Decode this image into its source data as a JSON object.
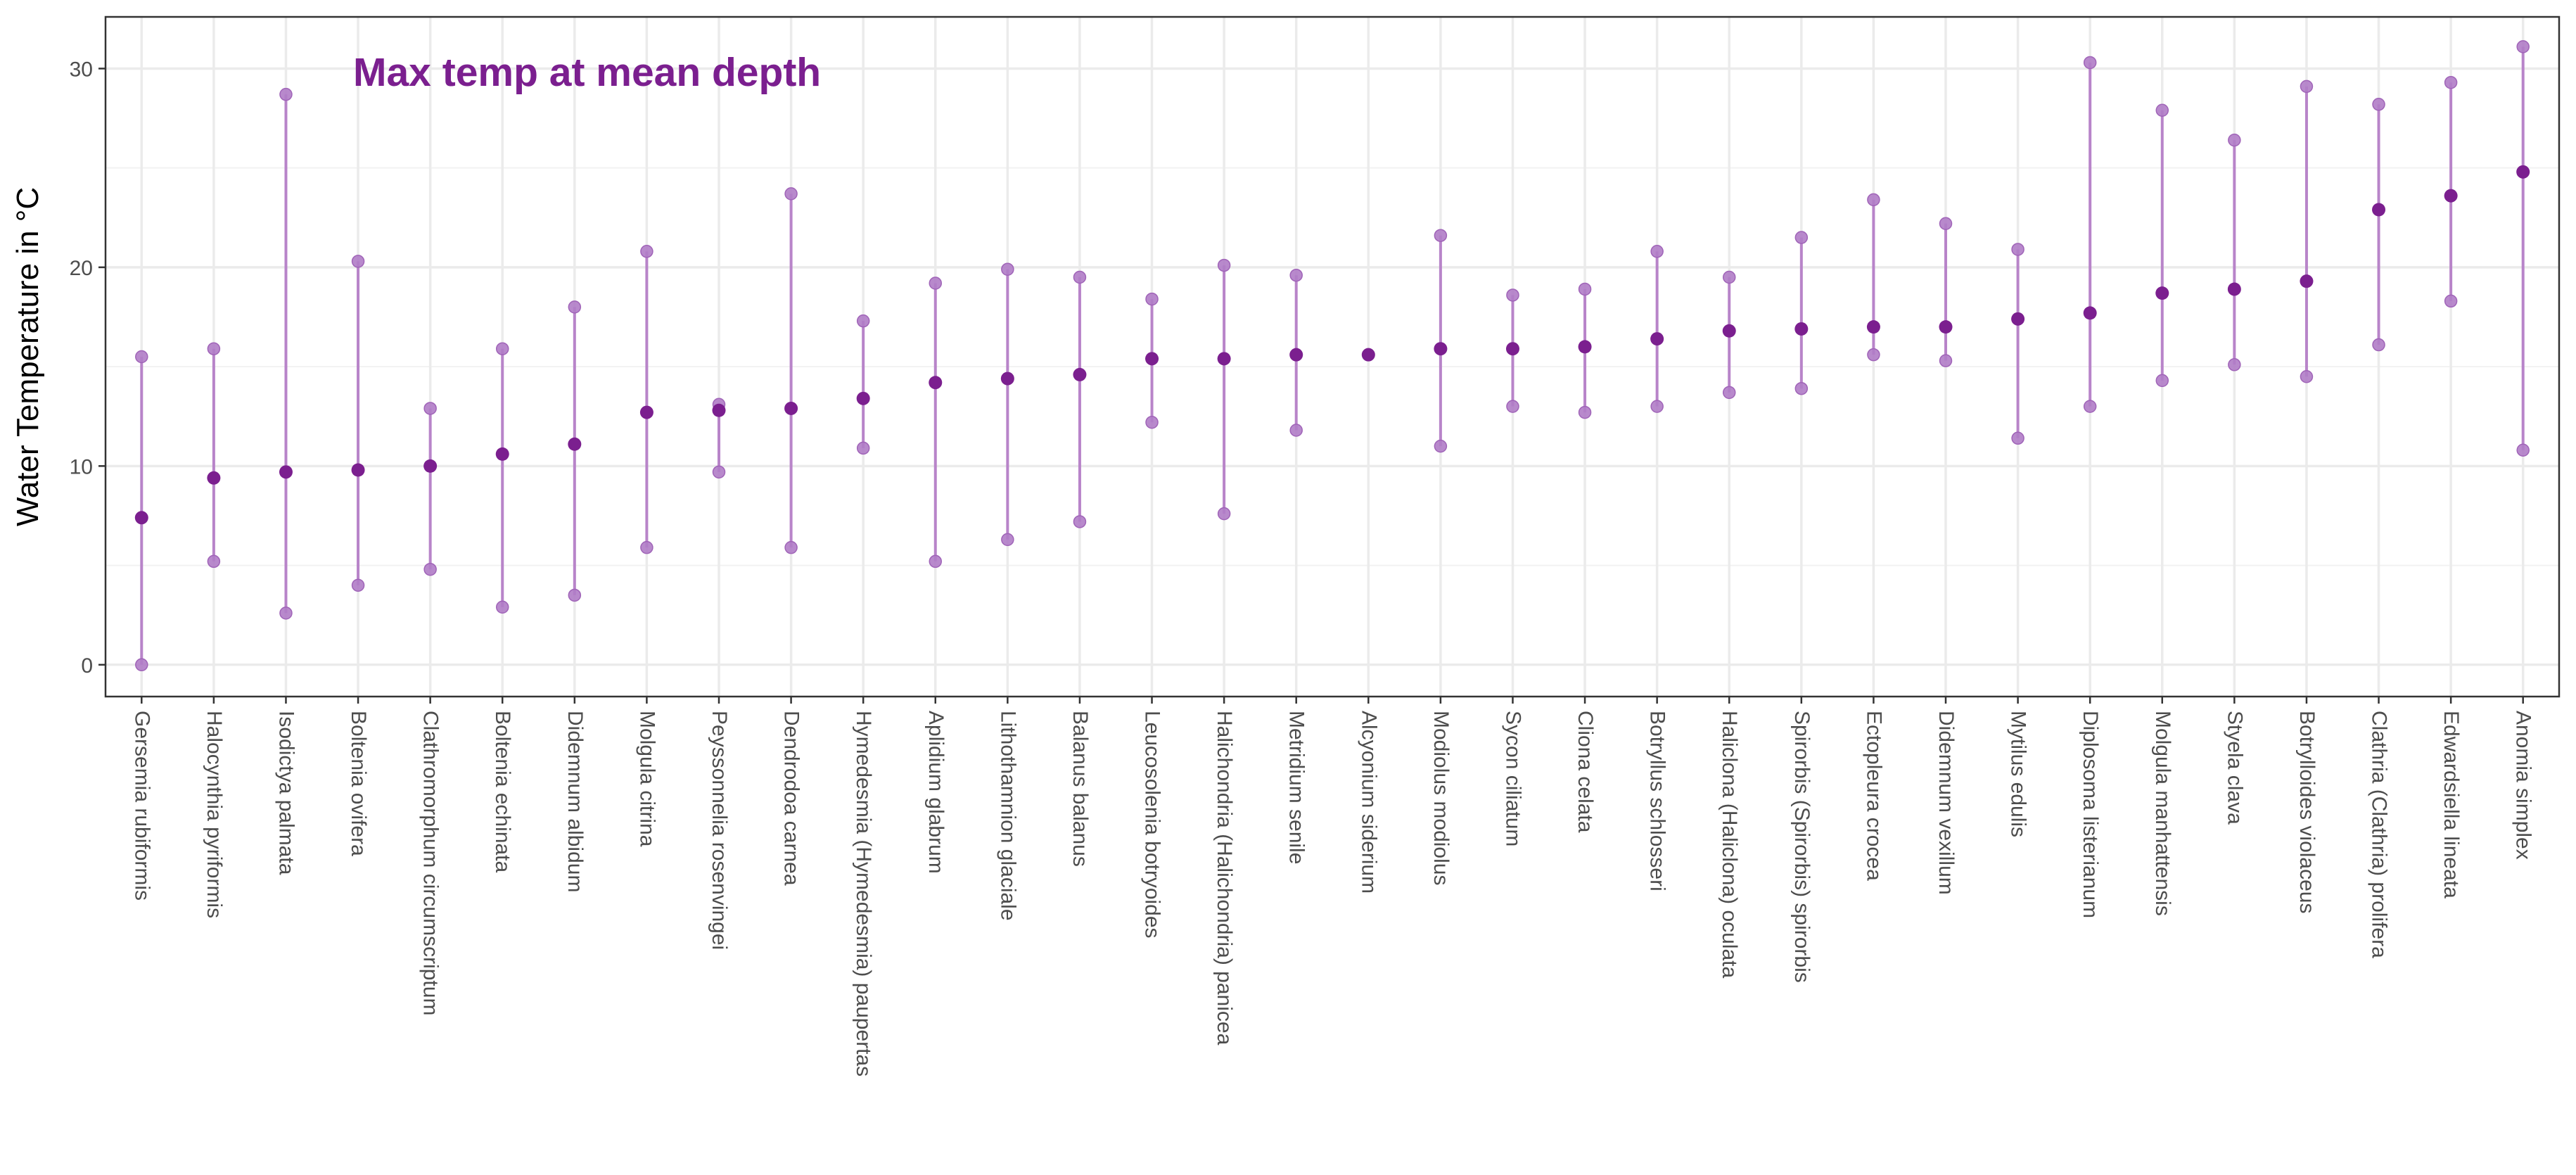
{
  "chart_data": {
    "type": "scatter",
    "subtype": "range-dot-plot",
    "annotation": "Max temp at mean depth",
    "ylabel": "Water Temperature in °C",
    "xlabel": "",
    "ylim": [
      -1.6,
      32.6
    ],
    "yticks": [
      0,
      10,
      20,
      30
    ],
    "grid": true,
    "theme": "bw",
    "colors": {
      "accent": "#7b1f8f",
      "point_light": "#b07cc6",
      "line": "#b884c9",
      "annotation": "#7b1f8f"
    },
    "categories": [
      "Gersemia rubiformis",
      "Halocynthia pyriformis",
      "Isodictya palmata",
      "Boltenia ovifera",
      "Clathromorphum circumscriptum",
      "Boltenia echinata",
      "Didemnum albidum",
      "Molgula citrina",
      "Peyssonnelia rosenvingei",
      "Dendrodoa carnea",
      "Hymedesmia (Hymedesmia) paupertas",
      "Aplidium glabrum",
      "Lithothamnion glaciale",
      "Balanus balanus",
      "Leucosolenia botryoides",
      "Halichondria (Halichondria) panicea",
      "Metridium senile",
      "Alcyonium siderium",
      "Modiolus modiolus",
      "Sycon ciliatum",
      "Cliona celata",
      "Botryllus schlosseri",
      "Haliclona (Haliclona) oculata",
      "Spirorbis (Spirorbis) spirorbis",
      "Ectopleura crocea",
      "Didemnum vexillum",
      "Mytilus edulis",
      "Diplosoma listerianum",
      "Molgula manhattensis",
      "Styela clava",
      "Botrylloides violaceus",
      "Clathria (Clathria) prolifera",
      "Edwardsiella lineata",
      "Anomia simplex"
    ],
    "series": [
      {
        "name": "",
        "values": [
          7.4,
          9.4,
          9.7,
          9.8,
          10.0,
          10.6,
          11.1,
          12.7,
          12.8,
          12.9,
          13.4,
          14.2,
          14.4,
          14.6,
          15.4,
          15.4,
          15.6,
          15.6,
          15.9,
          15.9,
          16.0,
          16.4,
          16.8,
          16.9,
          17.0,
          17.0,
          17.4,
          17.7,
          18.7,
          18.9,
          19.3,
          22.9,
          23.6,
          24.8
        ]
      },
      {
        "name": "",
        "values": [
          15.5,
          15.9,
          28.7,
          20.3,
          12.9,
          15.9,
          18.0,
          20.8,
          13.1,
          23.7,
          17.3,
          19.2,
          19.9,
          19.5,
          18.4,
          20.1,
          19.6,
          15.6,
          21.6,
          18.6,
          18.9,
          20.8,
          19.5,
          21.5,
          23.4,
          22.2,
          20.9,
          30.3,
          27.9,
          26.4,
          29.1,
          28.2,
          29.3,
          31.1
        ]
      },
      {
        "name": "",
        "values": [
          0.0,
          5.2,
          2.6,
          4.0,
          4.8,
          2.9,
          3.5,
          5.9,
          9.7,
          5.9,
          10.9,
          5.2,
          6.3,
          7.2,
          12.2,
          7.6,
          11.8,
          15.6,
          11.0,
          13.0,
          12.7,
          13.0,
          13.7,
          13.9,
          15.6,
          15.3,
          11.4,
          13.0,
          14.3,
          15.1,
          14.5,
          16.1,
          18.3,
          10.8
        ]
      }
    ]
  }
}
